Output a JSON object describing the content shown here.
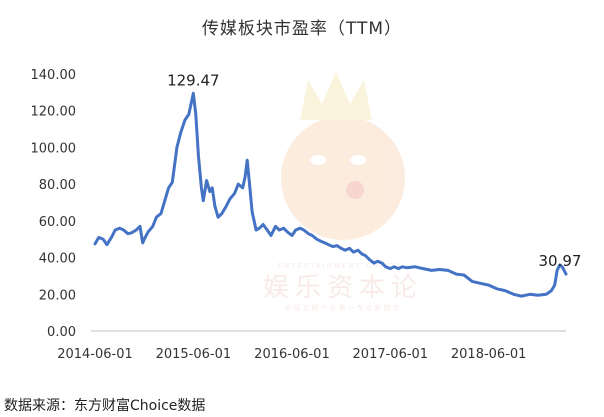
{
  "chart_data": {
    "type": "line",
    "title": "传媒板块市盈率（TTM）",
    "xlabel": "",
    "ylabel": "",
    "ylim": [
      0,
      140
    ],
    "yticks": [
      "0.00",
      "20.00",
      "40.00",
      "60.00",
      "80.00",
      "100.00",
      "120.00",
      "140.00"
    ],
    "xlim": [
      "2014-06-01",
      "2019-03-15"
    ],
    "xticks": [
      "2014-06-01",
      "2015-06-01",
      "2016-06-01",
      "2017-06-01",
      "2018-06-01"
    ],
    "grid": false,
    "legend": "none",
    "line_color": "#4472c4",
    "series": [
      {
        "points": [
          [
            "2014-06-01",
            47.5
          ],
          [
            "2014-06-15",
            51
          ],
          [
            "2014-07-01",
            50
          ],
          [
            "2014-07-15",
            47
          ],
          [
            "2014-08-01",
            51
          ],
          [
            "2014-08-15",
            55
          ],
          [
            "2014-09-01",
            56
          ],
          [
            "2014-09-15",
            55
          ],
          [
            "2014-10-01",
            53
          ],
          [
            "2014-10-15",
            53.5
          ],
          [
            "2014-11-01",
            55
          ],
          [
            "2014-11-15",
            57
          ],
          [
            "2014-11-25",
            48
          ],
          [
            "2014-12-01",
            50
          ],
          [
            "2014-12-15",
            54
          ],
          [
            "2015-01-01",
            57
          ],
          [
            "2015-01-15",
            62
          ],
          [
            "2015-02-01",
            64
          ],
          [
            "2015-02-15",
            71
          ],
          [
            "2015-03-01",
            78
          ],
          [
            "2015-03-15",
            81
          ],
          [
            "2015-04-01",
            100
          ],
          [
            "2015-04-15",
            108
          ],
          [
            "2015-05-01",
            115
          ],
          [
            "2015-05-15",
            118
          ],
          [
            "2015-06-01",
            129.47
          ],
          [
            "2015-06-10",
            118
          ],
          [
            "2015-06-20",
            95
          ],
          [
            "2015-07-01",
            78
          ],
          [
            "2015-07-08",
            71
          ],
          [
            "2015-07-20",
            82
          ],
          [
            "2015-08-01",
            76
          ],
          [
            "2015-08-10",
            78
          ],
          [
            "2015-08-20",
            68
          ],
          [
            "2015-09-01",
            62
          ],
          [
            "2015-09-15",
            64
          ],
          [
            "2015-10-01",
            68
          ],
          [
            "2015-10-15",
            72
          ],
          [
            "2015-11-01",
            75
          ],
          [
            "2015-11-15",
            80
          ],
          [
            "2015-12-01",
            78
          ],
          [
            "2015-12-10",
            84
          ],
          [
            "2015-12-18",
            93
          ],
          [
            "2015-12-28",
            78
          ],
          [
            "2016-01-05",
            65
          ],
          [
            "2016-01-20",
            55
          ],
          [
            "2016-02-01",
            56
          ],
          [
            "2016-02-15",
            58
          ],
          [
            "2016-03-01",
            55
          ],
          [
            "2016-03-15",
            52
          ],
          [
            "2016-04-01",
            57
          ],
          [
            "2016-04-15",
            55
          ],
          [
            "2016-05-01",
            56
          ],
          [
            "2016-05-15",
            54
          ],
          [
            "2016-06-01",
            52
          ],
          [
            "2016-06-15",
            55
          ],
          [
            "2016-07-01",
            56
          ],
          [
            "2016-07-15",
            55
          ],
          [
            "2016-08-01",
            53
          ],
          [
            "2016-08-15",
            52
          ],
          [
            "2016-09-01",
            50
          ],
          [
            "2016-09-15",
            49
          ],
          [
            "2016-10-01",
            48
          ],
          [
            "2016-10-15",
            47
          ],
          [
            "2016-11-01",
            46
          ],
          [
            "2016-11-15",
            46.5
          ],
          [
            "2016-12-01",
            45
          ],
          [
            "2016-12-15",
            44
          ],
          [
            "2017-01-01",
            45
          ],
          [
            "2017-01-15",
            43
          ],
          [
            "2017-02-01",
            44
          ],
          [
            "2017-02-15",
            42
          ],
          [
            "2017-03-01",
            41
          ],
          [
            "2017-03-15",
            39
          ],
          [
            "2017-04-01",
            37
          ],
          [
            "2017-04-15",
            38
          ],
          [
            "2017-05-01",
            37
          ],
          [
            "2017-05-15",
            35
          ],
          [
            "2017-06-01",
            34
          ],
          [
            "2017-06-15",
            35
          ],
          [
            "2017-07-01",
            34
          ],
          [
            "2017-07-15",
            35
          ],
          [
            "2017-08-01",
            34.5
          ],
          [
            "2017-09-01",
            35
          ],
          [
            "2017-10-01",
            34
          ],
          [
            "2017-11-01",
            33
          ],
          [
            "2017-12-01",
            33.5
          ],
          [
            "2018-01-01",
            33
          ],
          [
            "2018-02-01",
            31
          ],
          [
            "2018-03-01",
            30.5
          ],
          [
            "2018-04-01",
            27
          ],
          [
            "2018-05-01",
            26
          ],
          [
            "2018-06-01",
            25
          ],
          [
            "2018-07-01",
            23
          ],
          [
            "2018-08-01",
            22
          ],
          [
            "2018-09-01",
            20
          ],
          [
            "2018-10-01",
            19
          ],
          [
            "2018-11-01",
            20
          ],
          [
            "2018-12-01",
            19.5
          ],
          [
            "2019-01-01",
            20
          ],
          [
            "2019-01-20",
            22
          ],
          [
            "2019-02-01",
            25
          ],
          [
            "2019-02-10",
            33
          ],
          [
            "2019-02-20",
            36
          ],
          [
            "2019-03-01",
            35
          ],
          [
            "2019-03-15",
            30.97
          ]
        ]
      }
    ],
    "annotations": [
      {
        "date": "2015-06-01",
        "value": 129.47,
        "text": "129.47"
      },
      {
        "date": "2019-03-15",
        "value": 30.97,
        "text": "30.97"
      }
    ],
    "source_text": "数据来源：东方财富Choice数据",
    "watermark": {
      "title": "娱乐资本论",
      "subtitle": "ENTERTAINMENT CAPITAL",
      "caption": "中国文娱产业第一专业新媒体"
    }
  }
}
